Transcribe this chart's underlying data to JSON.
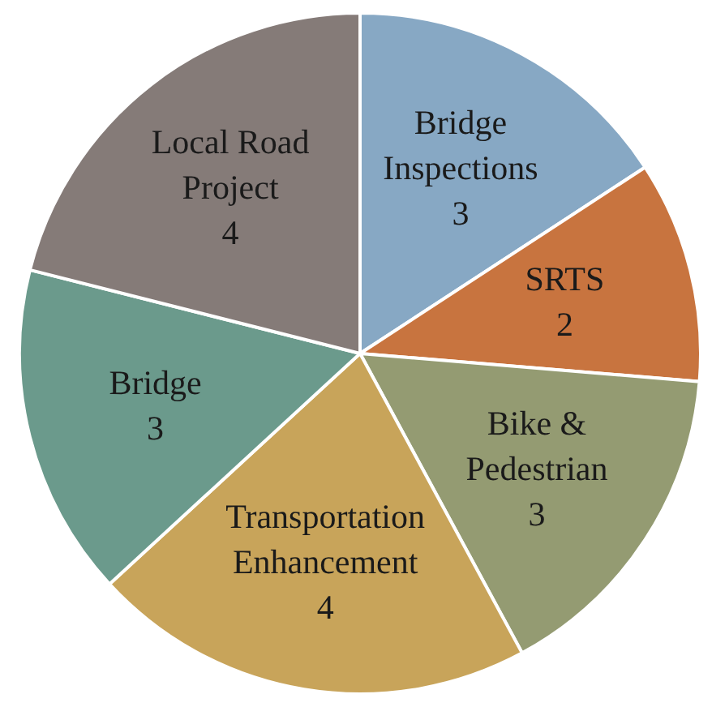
{
  "chart_data": {
    "type": "pie",
    "categories": [
      "Bridge Inspections",
      "SRTS",
      "Bike & Pedestrian",
      "Transportation Enhancement",
      "Bridge",
      "Local Road Project"
    ],
    "values": [
      3,
      2,
      3,
      4,
      3,
      4
    ],
    "colors": [
      "#87a8c4",
      "#c8743f",
      "#949b72",
      "#c8a45a",
      "#6b9a8c",
      "#857b78"
    ],
    "data_labels": true
  }
}
